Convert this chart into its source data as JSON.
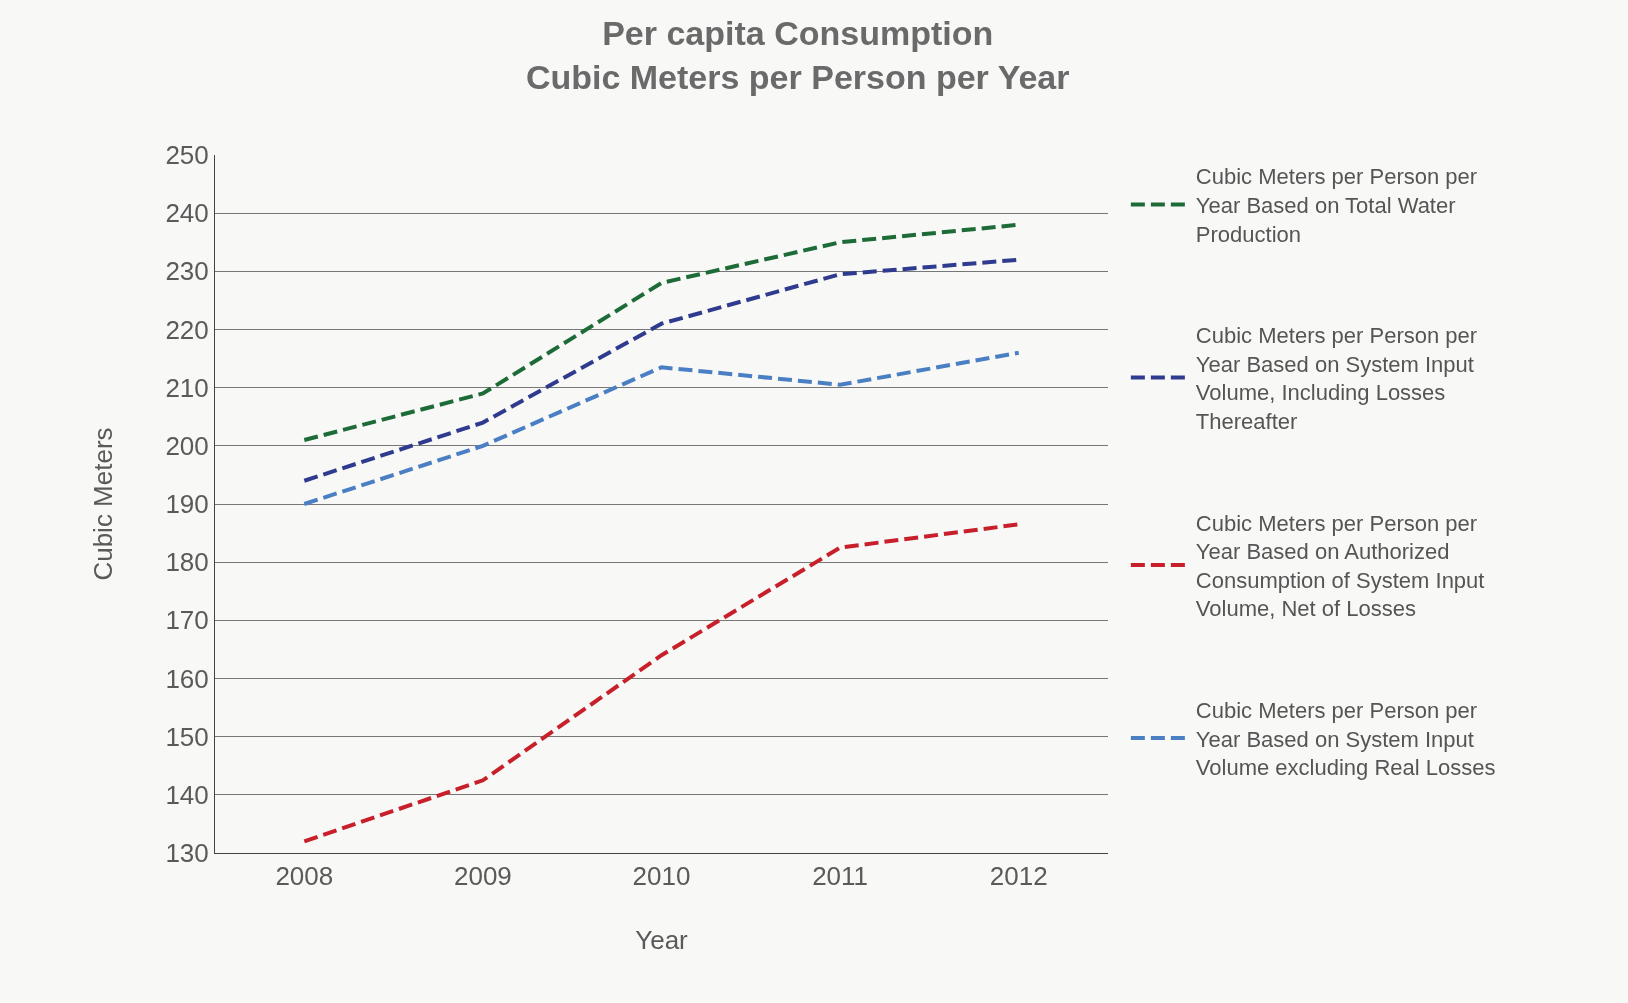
{
  "chart_data": {
    "type": "line",
    "title": "Per capita Consumption\nCubic Meters per Person per Year",
    "xlabel": "Year",
    "ylabel": "Cubic Meters",
    "categories": [
      "2008",
      "2009",
      "2010",
      "2011",
      "2012"
    ],
    "series": [
      {
        "name": "Cubic Meters per Person per Year Based on Total Water Production",
        "color": "#1d6b36",
        "values": [
          201,
          209,
          228,
          235,
          238
        ]
      },
      {
        "name": "Cubic Meters per Person per Year Based on System Input Volume, Including Losses Thereafter",
        "color": "#2f3b8e",
        "values": [
          194,
          204,
          221,
          229.5,
          232
        ]
      },
      {
        "name": "Cubic Meters per Person per Year Based on Authorized Consumption of System Input Volume, Net of Losses",
        "color": "#c8202a",
        "values": [
          132,
          142.5,
          164,
          182.5,
          186.5
        ]
      },
      {
        "name": "Cubic Meters per Person per Year Based on System Input Volume excluding Real Losses",
        "color": "#4a7fc4",
        "values": [
          190,
          200,
          213.5,
          210.5,
          216
        ]
      }
    ],
    "ylim": [
      130,
      250
    ],
    "yticks": [
      130,
      140,
      150,
      160,
      170,
      180,
      190,
      200,
      210,
      220,
      230,
      240,
      250
    ],
    "grid": "y",
    "legend": "right",
    "line_style": "dashed",
    "marker": "none"
  }
}
